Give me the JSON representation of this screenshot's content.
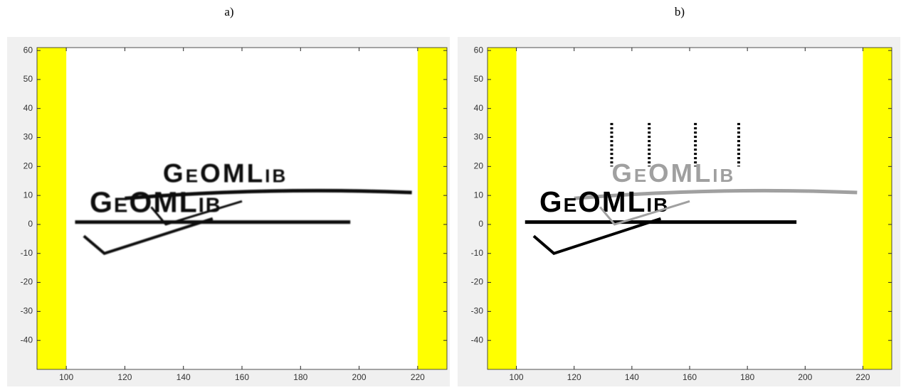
{
  "panels": [
    {
      "label": "a)",
      "xlim": [
        90,
        230
      ],
      "ylim": [
        -50,
        61
      ],
      "xticks": [
        100,
        120,
        140,
        160,
        180,
        200,
        220
      ],
      "yticks": [
        -40,
        -30,
        -20,
        -10,
        0,
        10,
        20,
        30,
        40,
        50,
        60
      ],
      "band_color": "#ffff00",
      "bands": [
        [
          90,
          100
        ],
        [
          220,
          230
        ]
      ],
      "logo_upper": "GeOMLib",
      "logo_lower": "GeOMLib",
      "upper_color": "#111111",
      "lower_color": "#111111",
      "style": "blur"
    },
    {
      "label": "b)",
      "xlim": [
        90,
        230
      ],
      "ylim": [
        -50,
        61
      ],
      "xticks": [
        100,
        120,
        140,
        160,
        180,
        200,
        220
      ],
      "yticks": [
        -40,
        -30,
        -20,
        -10,
        0,
        10,
        20,
        30,
        40,
        50,
        60
      ],
      "band_color": "#ffff00",
      "bands": [
        [
          90,
          100
        ],
        [
          220,
          230
        ]
      ],
      "logo_upper": "GeOMLib",
      "logo_lower": "GeOMLib",
      "upper_color": "#a0a0a0",
      "lower_color": "#000000",
      "style": "sharp"
    }
  ]
}
